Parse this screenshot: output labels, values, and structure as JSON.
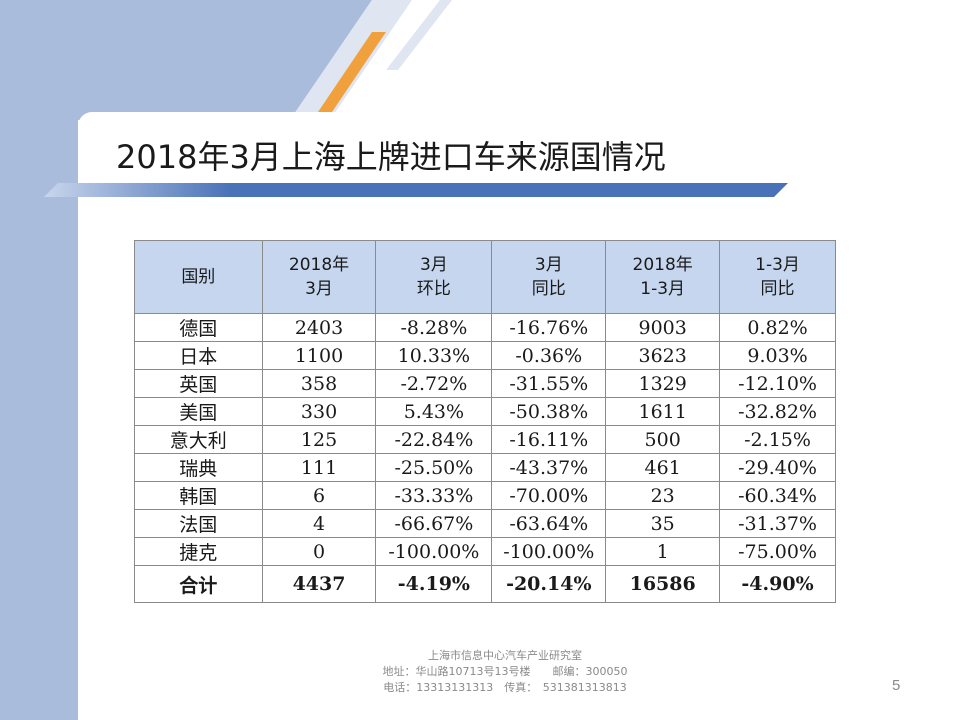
{
  "slide": {
    "title": "2018年3月上海上牌进口车来源国情况",
    "page_number": "5"
  },
  "colors": {
    "sidebar": "#a9bcdc",
    "accent_orange": "#f0a03c",
    "header_fill": "#c6d6ef",
    "title_bar": "#4a72b8"
  },
  "table": {
    "headers": [
      {
        "line1": "国别",
        "line2": ""
      },
      {
        "line1": "2018年",
        "line2": "3月"
      },
      {
        "line1": "3月",
        "line2": "环比"
      },
      {
        "line1": "3月",
        "line2": "同比"
      },
      {
        "line1": "2018年",
        "line2": "1-3月"
      },
      {
        "line1": "1-3月",
        "line2": "同比"
      }
    ],
    "rows": [
      [
        "德国",
        "2403",
        "-8.28%",
        "-16.76%",
        "9003",
        "0.82%"
      ],
      [
        "日本",
        "1100",
        "10.33%",
        "-0.36%",
        "3623",
        "9.03%"
      ],
      [
        "英国",
        "358",
        "-2.72%",
        "-31.55%",
        "1329",
        "-12.10%"
      ],
      [
        "美国",
        "330",
        "5.43%",
        "-50.38%",
        "1611",
        "-32.82%"
      ],
      [
        "意大利",
        "125",
        "-22.84%",
        "-16.11%",
        "500",
        "-2.15%"
      ],
      [
        "瑞典",
        "111",
        "-25.50%",
        "-43.37%",
        "461",
        "-29.40%"
      ],
      [
        "韩国",
        "6",
        "-33.33%",
        "-70.00%",
        "23",
        "-60.34%"
      ],
      [
        "法国",
        "4",
        "-66.67%",
        "-63.64%",
        "35",
        "-31.37%"
      ],
      [
        "捷克",
        "0",
        "-100.00%",
        "-100.00%",
        "1",
        "-75.00%"
      ]
    ],
    "total": [
      "合计",
      "4437",
      "-4.19%",
      "-20.14%",
      "16586",
      "-4.90%"
    ]
  },
  "footer": {
    "line1": "上海市信息中心汽车产业研究室",
    "line2": "地址：华山路10713号13号楼　　邮编：300050",
    "line3": "电话：13313131313　传真：　531381313813"
  }
}
